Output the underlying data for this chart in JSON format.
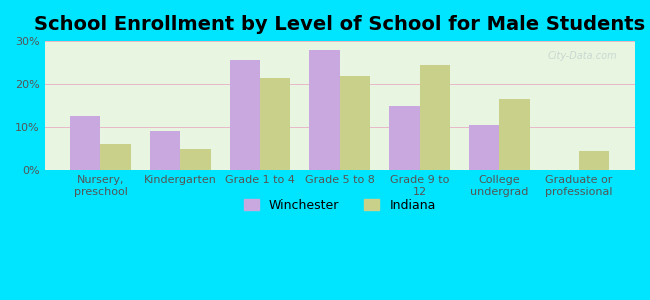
{
  "title": "School Enrollment by Level of School for Male Students",
  "categories": [
    "Nursery,\npreschool",
    "Kindergarten",
    "Grade 1 to 4",
    "Grade 5 to 8",
    "Grade 9 to\n12",
    "College\nundergrad",
    "Graduate or\nprofessional"
  ],
  "winchester_values": [
    12.5,
    9.0,
    25.5,
    28.0,
    15.0,
    10.5,
    0
  ],
  "indiana_values": [
    6.0,
    5.0,
    21.5,
    22.0,
    24.5,
    16.5,
    4.5
  ],
  "winchester_color": "#c9a8e0",
  "indiana_color": "#c8d08a",
  "background_outer": "#00e5ff",
  "background_plot": "#e8f5e0",
  "ylim": [
    0,
    30
  ],
  "yticks": [
    0,
    10,
    20,
    30
  ],
  "ytick_labels": [
    "0%",
    "10%",
    "20%",
    "30%"
  ],
  "legend_winchester": "Winchester",
  "legend_indiana": "Indiana",
  "bar_width": 0.38,
  "title_fontsize": 14,
  "tick_fontsize": 8,
  "legend_fontsize": 9
}
